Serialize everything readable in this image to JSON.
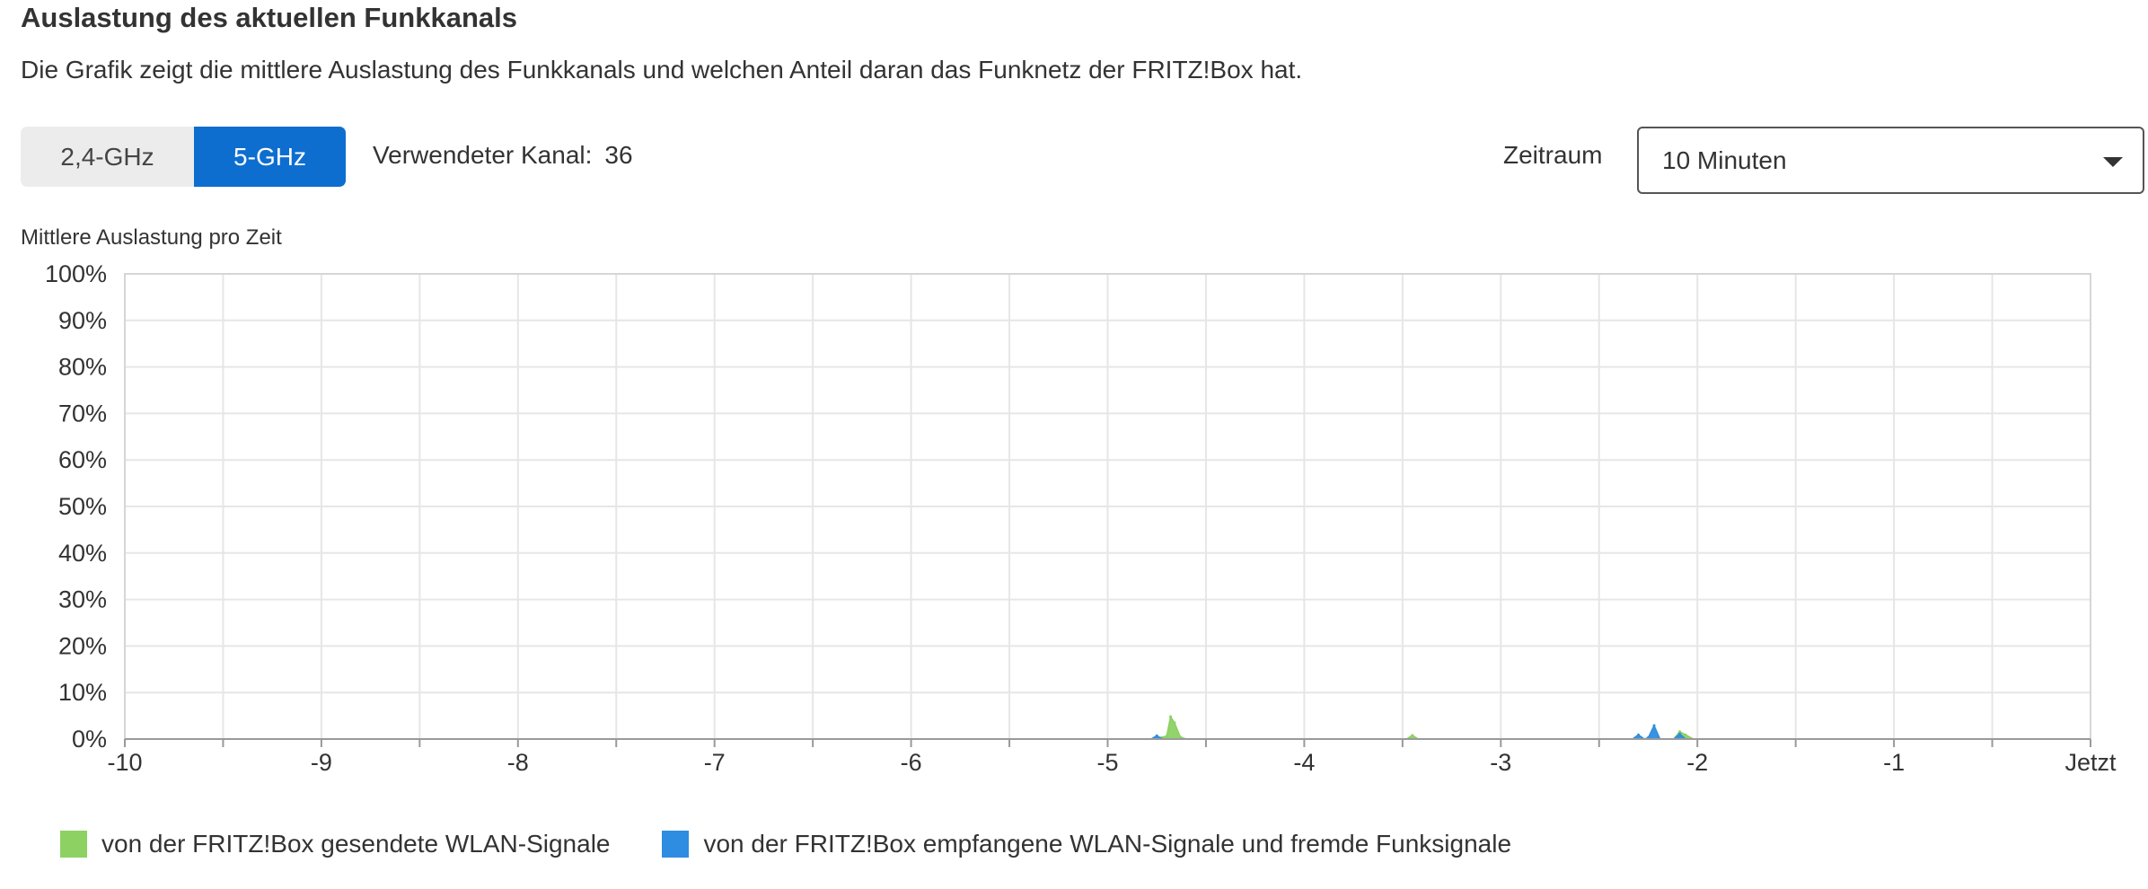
{
  "header": {
    "title": "Auslastung des aktuellen Funkkanals",
    "description": "Die Grafik zeigt die mittlere Auslastung des Funkkanals und welchen Anteil daran das Funknetz der FRITZ!Box hat."
  },
  "band_toggle": {
    "options": [
      {
        "label": "2,4-GHz",
        "selected": false
      },
      {
        "label": "5-GHz",
        "selected": true
      }
    ]
  },
  "channel": {
    "label": "Verwendeter Kanal:",
    "value": "36"
  },
  "zeitraum": {
    "label": "Zeitraum",
    "selected": "10 Minuten"
  },
  "colors": {
    "accent": "#0d6ed0",
    "series_sent": "#8dd163",
    "series_received": "#2e8de0",
    "grid": "#e6e6e6"
  },
  "chart_data": {
    "type": "area",
    "title": "Mittlere Auslastung pro Zeit",
    "xlabel": "",
    "ylabel": "",
    "xlim": [
      -10,
      0
    ],
    "ylim": [
      0,
      100
    ],
    "x_tick_values": [
      -10,
      -9,
      -8,
      -7,
      -6,
      -5,
      -4,
      -3,
      -2,
      -1,
      0
    ],
    "x_tick_labels": [
      "-10",
      "-9",
      "-8",
      "-7",
      "-6",
      "-5",
      "-4",
      "-3",
      "-2",
      "-1",
      "Jetzt"
    ],
    "y_tick_values": [
      0,
      10,
      20,
      30,
      40,
      50,
      60,
      70,
      80,
      90,
      100
    ],
    "y_tick_labels": [
      "0%",
      "10%",
      "20%",
      "30%",
      "40%",
      "50%",
      "60%",
      "70%",
      "80%",
      "90%",
      "100%"
    ],
    "grid": true,
    "legend_position": "bottom-left",
    "series": [
      {
        "name": "von der FRITZ!Box gesendete WLAN-Signale",
        "color": "#8dd163",
        "x": [
          -4.78,
          -4.7,
          -4.68,
          -4.66,
          -4.63,
          -4.6,
          -3.48,
          -3.45,
          -3.42,
          -2.12,
          -2.09,
          -2.06,
          -2.02
        ],
        "y": [
          0,
          0.6,
          4.8,
          3.5,
          0.4,
          0,
          0,
          0.8,
          0,
          0,
          1.6,
          0.9,
          0
        ]
      },
      {
        "name": "von der FRITZ!Box empfangene WLAN-Signale und fremde Funksignale",
        "color": "#2e8de0",
        "x": [
          -4.78,
          -4.75,
          -4.72,
          -2.33,
          -2.3,
          -2.27,
          -2.25,
          -2.22,
          -2.19,
          -2.12,
          -2.09,
          -2.06
        ],
        "y": [
          0,
          0.7,
          0,
          0,
          0.9,
          0,
          0.3,
          2.9,
          0,
          0,
          1.1,
          0
        ]
      }
    ]
  }
}
